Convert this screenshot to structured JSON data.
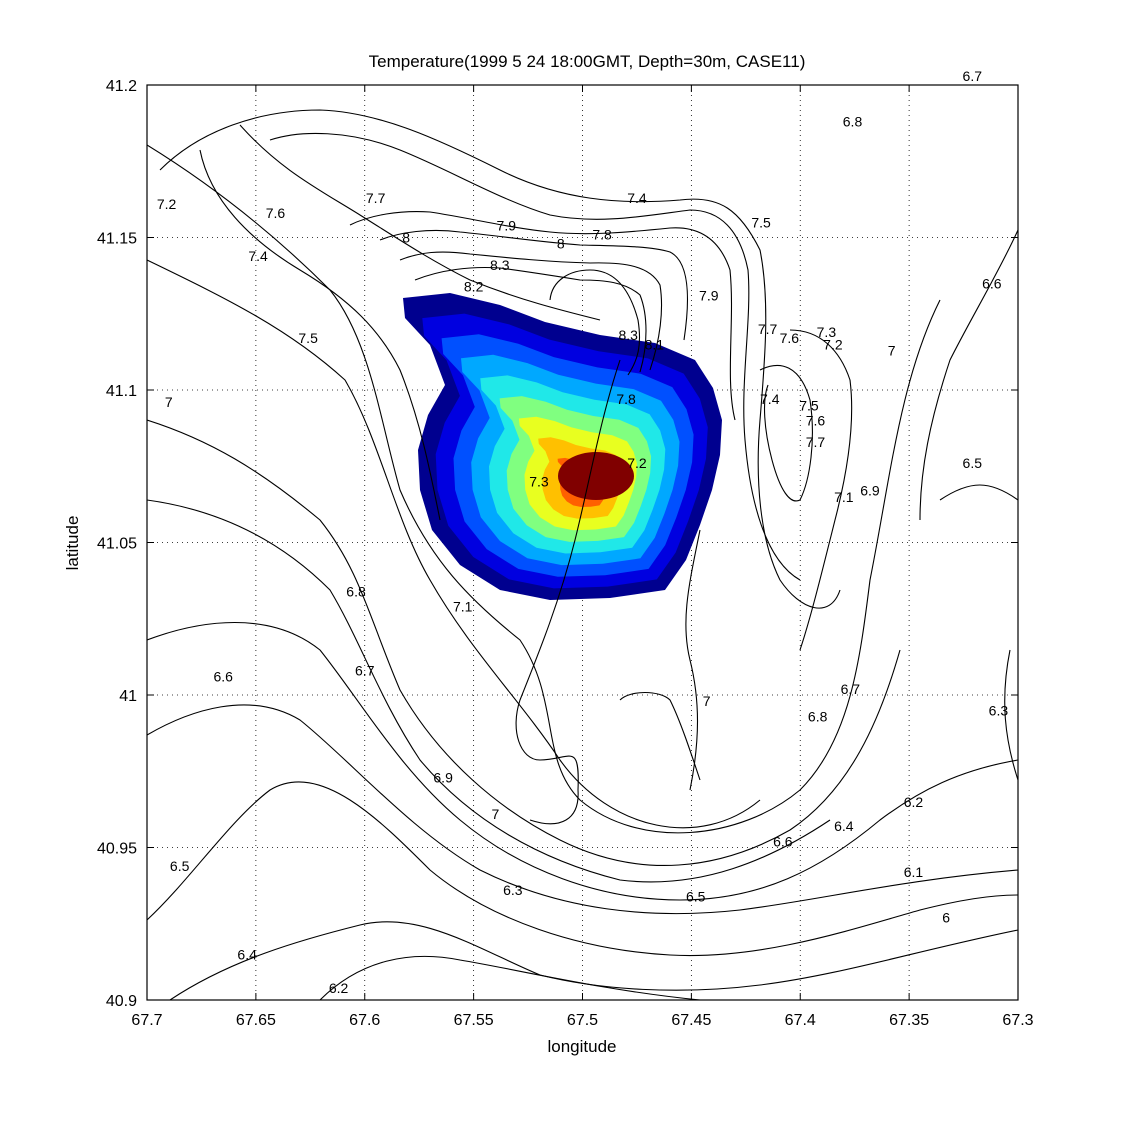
{
  "chart_data": {
    "type": "contour",
    "title": "Temperature(1999  5  24 18:00GMT, Depth=30m, CASE11)",
    "xlabel": "longitude",
    "ylabel": "latitude",
    "xlim": [
      67.7,
      67.3
    ],
    "ylim": [
      40.9,
      41.2
    ],
    "x_reversed": true,
    "grid": true,
    "x_ticks": [
      "67.7",
      "67.65",
      "67.6",
      "67.55",
      "67.5",
      "67.45",
      "67.4",
      "67.35",
      "67.3"
    ],
    "y_ticks": [
      "40.9",
      "40.95",
      "41",
      "41.05",
      "41.1",
      "41.15",
      "41.2"
    ],
    "filled_region": {
      "colormap": "jet",
      "center": [
        67.495,
        41.074
      ],
      "levels": 9
    },
    "contour_labels": [
      {
        "text": "7.2",
        "x": 67.691,
        "y": 41.161
      },
      {
        "text": "7.6",
        "x": 67.641,
        "y": 41.158
      },
      {
        "text": "7.7",
        "x": 67.595,
        "y": 41.163
      },
      {
        "text": "7.4",
        "x": 67.649,
        "y": 41.144
      },
      {
        "text": "8",
        "x": 67.581,
        "y": 41.15
      },
      {
        "text": "7.9",
        "x": 67.535,
        "y": 41.154
      },
      {
        "text": "8",
        "x": 67.51,
        "y": 41.148
      },
      {
        "text": "7.8",
        "x": 67.491,
        "y": 41.151
      },
      {
        "text": "7.4",
        "x": 67.475,
        "y": 41.163
      },
      {
        "text": "7.5",
        "x": 67.418,
        "y": 41.155
      },
      {
        "text": "8.3",
        "x": 67.538,
        "y": 41.141
      },
      {
        "text": "8.2",
        "x": 67.55,
        "y": 41.134
      },
      {
        "text": "7.9",
        "x": 67.442,
        "y": 41.131
      },
      {
        "text": "7.7",
        "x": 67.415,
        "y": 41.12
      },
      {
        "text": "7.6",
        "x": 67.405,
        "y": 41.117
      },
      {
        "text": "7.3",
        "x": 67.388,
        "y": 41.119
      },
      {
        "text": "7.2",
        "x": 67.385,
        "y": 41.115
      },
      {
        "text": "7",
        "x": 67.358,
        "y": 41.113
      },
      {
        "text": "7.5",
        "x": 67.626,
        "y": 41.117
      },
      {
        "text": "8.3",
        "x": 67.479,
        "y": 41.118
      },
      {
        "text": "8.1",
        "x": 67.467,
        "y": 41.115
      },
      {
        "text": "7.8",
        "x": 67.48,
        "y": 41.097
      },
      {
        "text": "7.4",
        "x": 67.414,
        "y": 41.097
      },
      {
        "text": "7.5",
        "x": 67.396,
        "y": 41.095
      },
      {
        "text": "7.6",
        "x": 67.393,
        "y": 41.09
      },
      {
        "text": "7.7",
        "x": 67.393,
        "y": 41.083
      },
      {
        "text": "7.2",
        "x": 67.475,
        "y": 41.076
      },
      {
        "text": "7.3",
        "x": 67.52,
        "y": 41.07
      },
      {
        "text": "7.1",
        "x": 67.38,
        "y": 41.065
      },
      {
        "text": "6.9",
        "x": 67.368,
        "y": 41.067
      },
      {
        "text": "7",
        "x": 67.69,
        "y": 41.096
      },
      {
        "text": "6.5",
        "x": 67.321,
        "y": 41.076
      },
      {
        "text": "6.6",
        "x": 67.312,
        "y": 41.135
      },
      {
        "text": "6.8",
        "x": 67.376,
        "y": 41.188
      },
      {
        "text": "6.7",
        "x": 67.321,
        "y": 41.203
      },
      {
        "text": "6.8",
        "x": 67.604,
        "y": 41.034
      },
      {
        "text": "7.1",
        "x": 67.555,
        "y": 41.029
      },
      {
        "text": "6.7",
        "x": 67.6,
        "y": 41.008
      },
      {
        "text": "6.6",
        "x": 67.665,
        "y": 41.006
      },
      {
        "text": "7",
        "x": 67.443,
        "y": 40.998
      },
      {
        "text": "6.7",
        "x": 67.377,
        "y": 41.002
      },
      {
        "text": "6.8",
        "x": 67.392,
        "y": 40.993
      },
      {
        "text": "6.3",
        "x": 67.309,
        "y": 40.995
      },
      {
        "text": "6.9",
        "x": 67.564,
        "y": 40.973
      },
      {
        "text": "7",
        "x": 67.54,
        "y": 40.961
      },
      {
        "text": "6.2",
        "x": 67.348,
        "y": 40.965
      },
      {
        "text": "6.4",
        "x": 67.38,
        "y": 40.957
      },
      {
        "text": "6.6",
        "x": 67.408,
        "y": 40.952
      },
      {
        "text": "6.5",
        "x": 67.685,
        "y": 40.944
      },
      {
        "text": "6.3",
        "x": 67.532,
        "y": 40.936
      },
      {
        "text": "6.5",
        "x": 67.448,
        "y": 40.934
      },
      {
        "text": "6.1",
        "x": 67.348,
        "y": 40.942
      },
      {
        "text": "6",
        "x": 67.333,
        "y": 40.927
      },
      {
        "text": "6.4",
        "x": 67.654,
        "y": 40.915
      },
      {
        "text": "6.2",
        "x": 67.612,
        "y": 40.904
      }
    ]
  }
}
